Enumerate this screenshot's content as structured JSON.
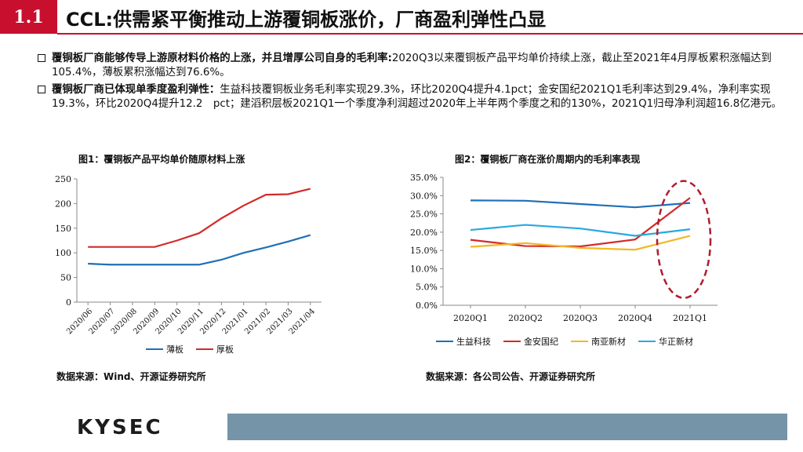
{
  "header": {
    "badge": "1.1",
    "title": "CCL:供需紧平衡推动上游覆铜板涨价，厂商盈利弹性凸显"
  },
  "bullets": [
    {
      "bold": "覆铜板厂商能够传导上游原材料价格的上涨，并且增厚公司自身的毛利率:",
      "text": "2020Q3以来覆铜板产品平均单价持续上涨，截止至2021年4月厚板累积涨幅达到105.4%，薄板累积涨幅达到76.6%。"
    },
    {
      "bold": "覆铜板厂商已体现单季度盈利弹性：",
      "text": "生益科技覆铜板业务毛利率实现29.3%，环比2020Q4提升4.1pct；金安国纪2021Q1毛利率达到29.4%，净利率实现19.3%，环比2020Q4提升12.2　pct；建滔积层板2021Q1一个季度净利润超过2020年上半年两个季度之和的130%，2021Q1归母净利润超16.8亿港元。"
    }
  ],
  "chart_data": [
    {
      "type": "line",
      "title": "图1：覆铜板产品平均单价随原材料上涨",
      "categories": [
        "2020/06",
        "2020/07",
        "2020/08",
        "2020/09",
        "2020/10",
        "2020/11",
        "2020/12",
        "2021/01",
        "2021/02",
        "2021/03",
        "2021/04"
      ],
      "ylim": [
        0,
        250
      ],
      "yticks": [
        "0",
        "50",
        "100",
        "150",
        "200",
        "250"
      ],
      "grid": false,
      "legend_position": "bottom",
      "series": [
        {
          "name": "薄板",
          "color": "#1f6fb5",
          "values": [
            78,
            76,
            76,
            76,
            76,
            76,
            86,
            100,
            111,
            123,
            136
          ]
        },
        {
          "name": "厚板",
          "color": "#d42a2a",
          "values": [
            112,
            112,
            112,
            112,
            125,
            140,
            170,
            196,
            218,
            219,
            230
          ]
        }
      ],
      "source": "数据来源：Wind、开源证券研究所"
    },
    {
      "type": "line",
      "title": "图2：覆铜板厂商在涨价周期内的毛利率表现",
      "categories": [
        "2020Q1",
        "2020Q2",
        "2020Q3",
        "2020Q4",
        "2021Q1"
      ],
      "ylim": [
        0,
        35
      ],
      "yticks": [
        "0.0%",
        "5.0%",
        "10.0%",
        "15.0%",
        "20.0%",
        "25.0%",
        "30.0%",
        "35.0%"
      ],
      "grid": false,
      "legend_position": "bottom",
      "series": [
        {
          "name": "生益科技",
          "color": "#1f6fb5",
          "values": [
            28.7,
            28.6,
            27.7,
            26.8,
            28.0
          ]
        },
        {
          "name": "金安国纪",
          "color": "#d42a2a",
          "values": [
            17.9,
            16.2,
            16.1,
            18.0,
            29.4
          ]
        },
        {
          "name": "南亚新材",
          "color": "#f2b824",
          "values": [
            16.0,
            17.0,
            15.7,
            15.2,
            19.0
          ]
        },
        {
          "name": "华正新材",
          "color": "#27a9e1",
          "values": [
            20.6,
            22.0,
            21.0,
            19.0,
            20.8
          ]
        }
      ],
      "annotation": "red dashed ellipse around 2021Q1",
      "source": "数据来源：各公司公告、开源证券研究所"
    }
  ],
  "footer": {
    "logo": "KYSEC"
  }
}
